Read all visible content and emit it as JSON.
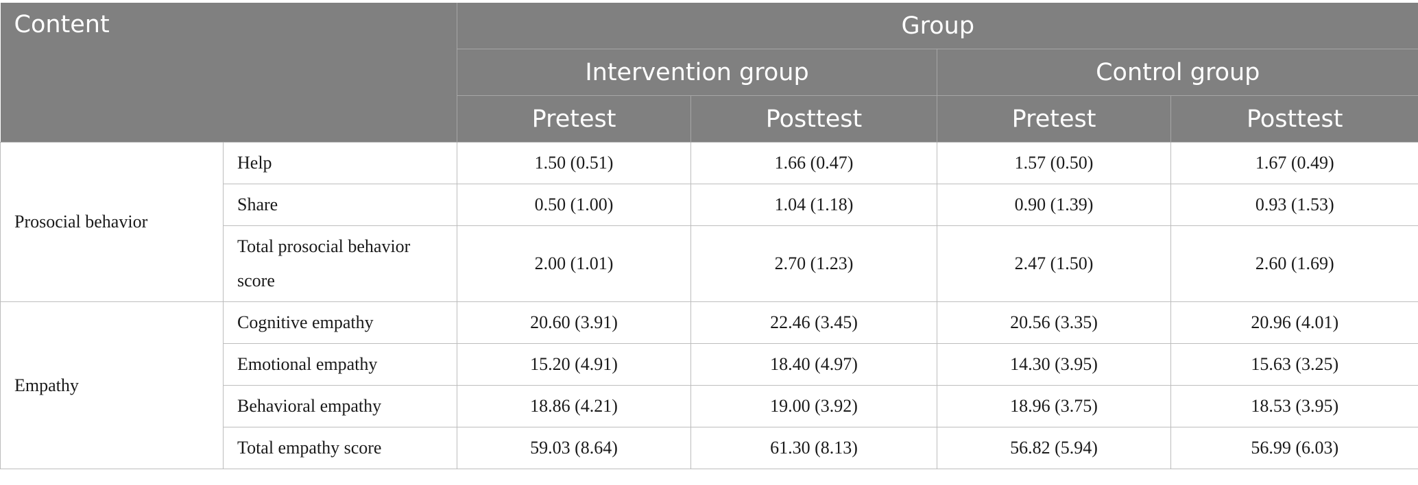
{
  "table": {
    "headers": {
      "content": "Content",
      "group": "Group",
      "intervention": "Intervention group",
      "control": "Control group",
      "pretest": "Pretest",
      "posttest": "Posttest"
    },
    "sections": [
      {
        "label": "Prosocial behavior",
        "rows": [
          {
            "item": "Help",
            "values": [
              "1.50 (0.51)",
              "1.66 (0.47)",
              "1.57 (0.50)",
              "1.67 (0.49)"
            ]
          },
          {
            "item": "Share",
            "values": [
              "0.50 (1.00)",
              "1.04 (1.18)",
              "0.90 (1.39)",
              "0.93 (1.53)"
            ]
          },
          {
            "item": "Total prosocial behavior score",
            "values": [
              "2.00 (1.01)",
              "2.70 (1.23)",
              "2.47 (1.50)",
              "2.60 (1.69)"
            ]
          }
        ]
      },
      {
        "label": "Empathy",
        "rows": [
          {
            "item": "Cognitive empathy",
            "values": [
              "20.60 (3.91)",
              "22.46 (3.45)",
              "20.56 (3.35)",
              "20.96 (4.01)"
            ]
          },
          {
            "item": "Emotional empathy",
            "values": [
              "15.20 (4.91)",
              "18.40 (4.97)",
              "14.30 (3.95)",
              "15.63 (3.25)"
            ]
          },
          {
            "item": "Behavioral empathy",
            "values": [
              "18.86 (4.21)",
              "19.00 (3.92)",
              "18.96 (3.75)",
              "18.53 (3.95)"
            ]
          },
          {
            "item": "Total empathy score",
            "values": [
              "59.03 (8.64)",
              "61.30 (8.13)",
              "56.82 (5.94)",
              "56.99 (6.03)"
            ]
          }
        ]
      }
    ]
  }
}
